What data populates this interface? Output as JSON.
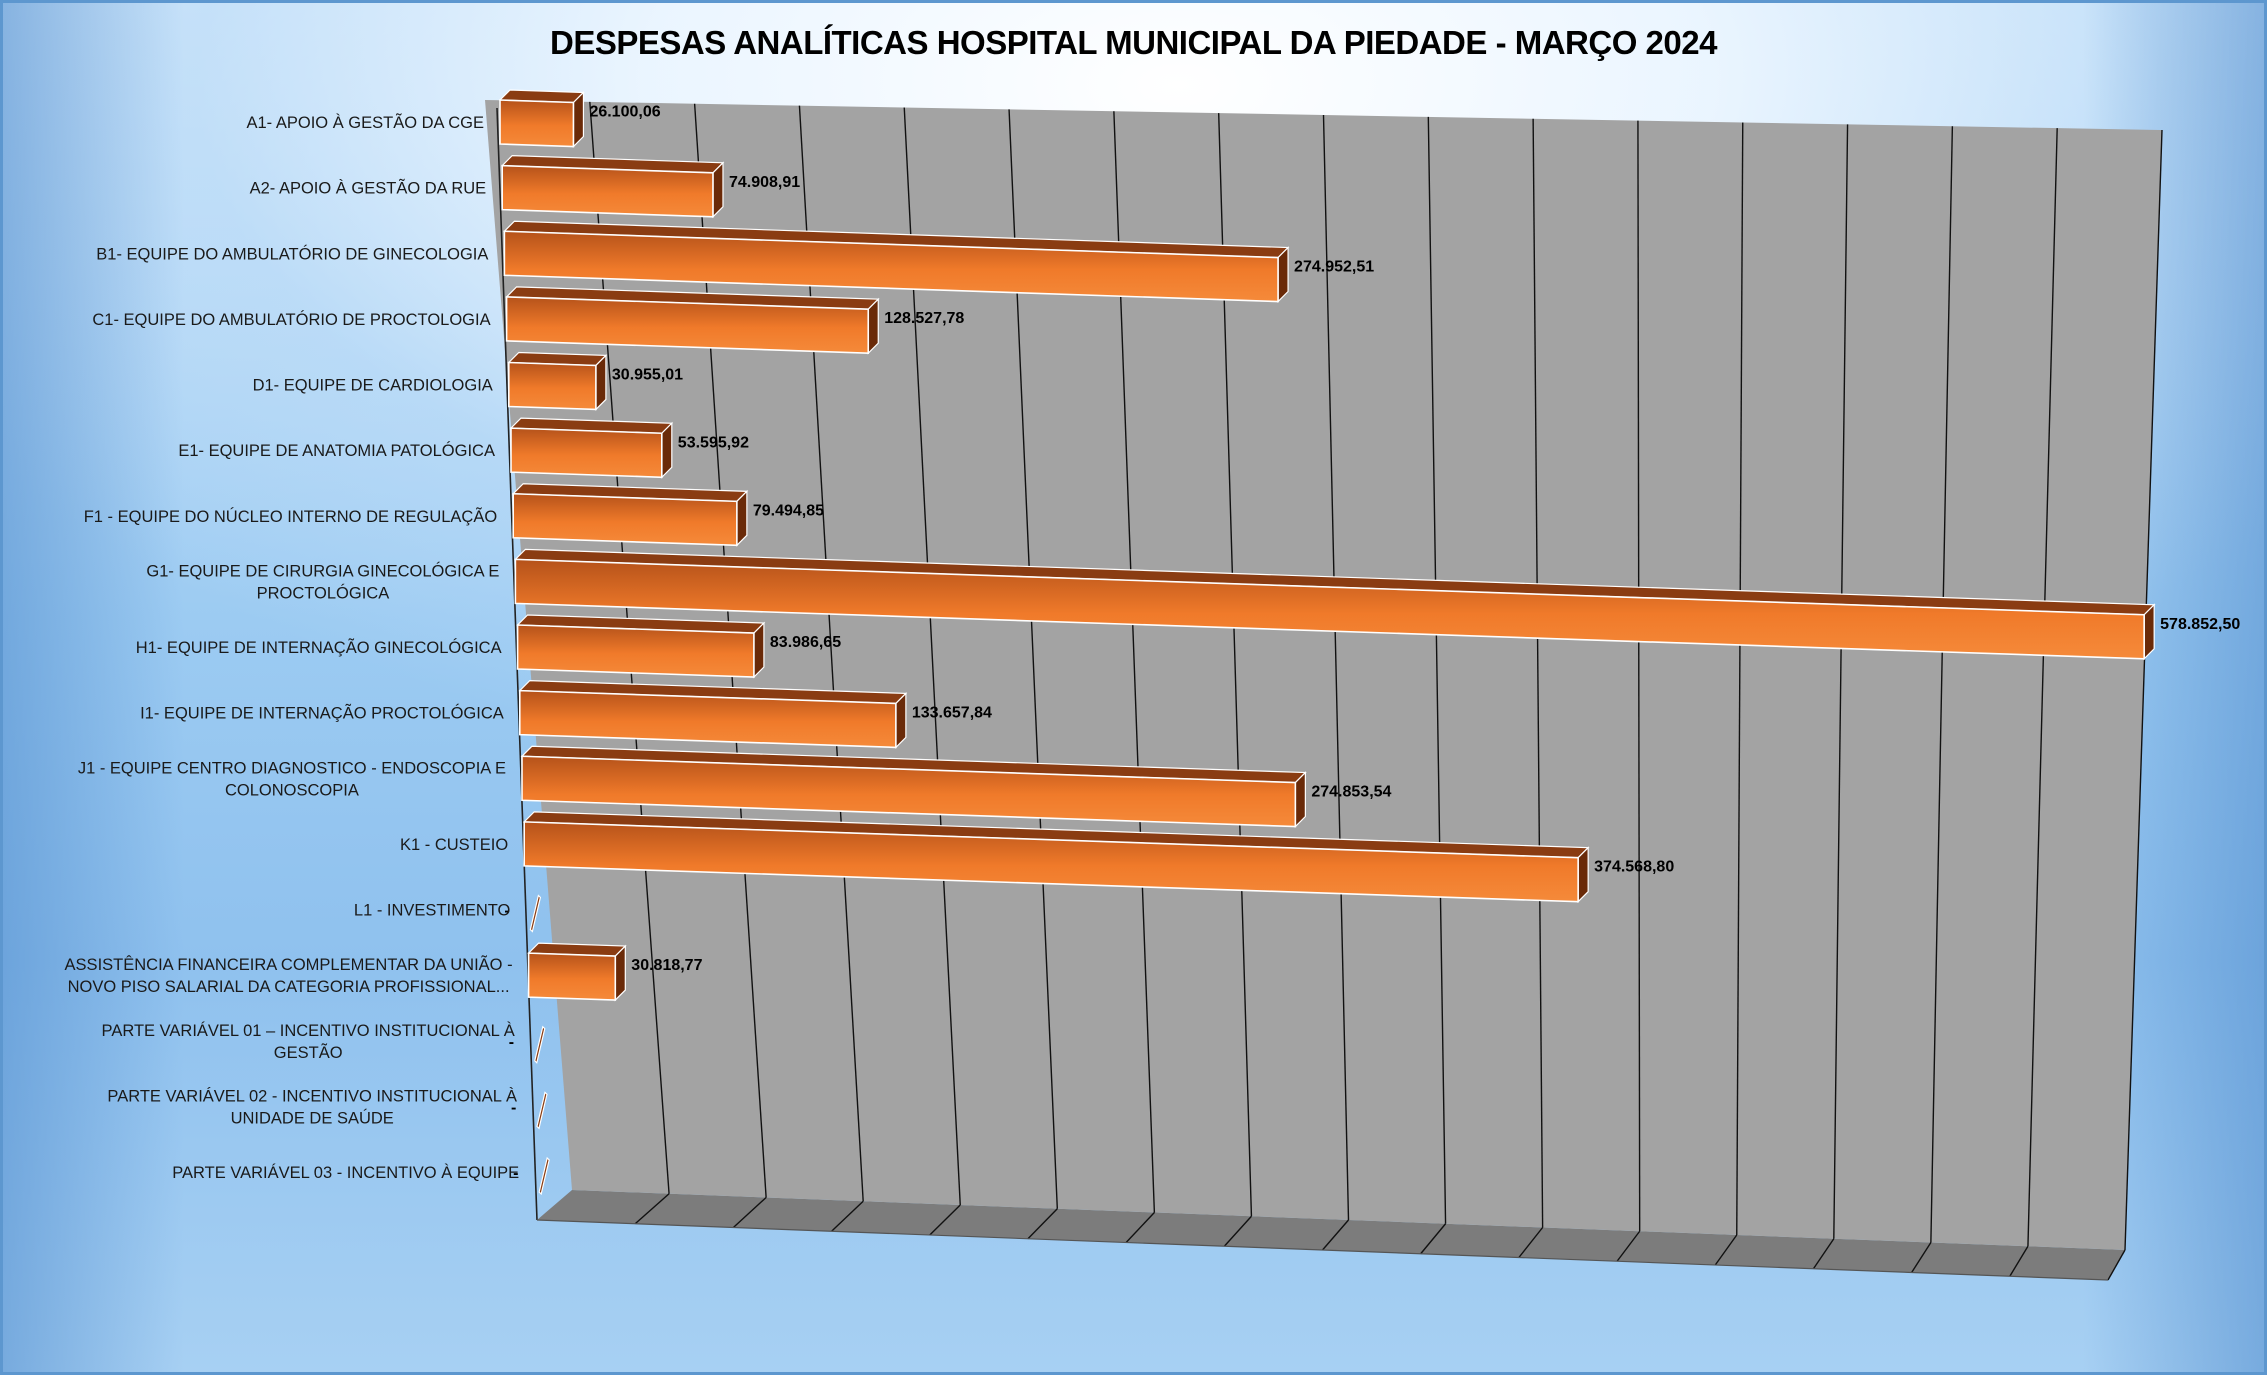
{
  "chart_data": {
    "type": "bar",
    "orientation": "horizontal",
    "title": "DESPESAS ANALÍTICAS HOSPITAL MUNICIPAL DA PIEDADE - MARÇO 2024",
    "categories": [
      [
        "A1- APOIO À GESTÃO DA CGE"
      ],
      [
        "A2- APOIO À GESTÃO DA RUE"
      ],
      [
        "B1- EQUIPE DO AMBULATÓRIO DE GINECOLOGIA"
      ],
      [
        "C1- EQUIPE DO AMBULATÓRIO DE PROCTOLOGIA"
      ],
      [
        "D1- EQUIPE DE CARDIOLOGIA"
      ],
      [
        "E1- EQUIPE DE ANATOMIA PATOLÓGICA"
      ],
      [
        "F1 - EQUIPE DO NÚCLEO INTERNO DE REGULAÇÃO"
      ],
      [
        "G1- EQUIPE DE CIRURGIA GINECOLÓGICA E",
        "PROCTOLÓGICA"
      ],
      [
        "H1- EQUIPE DE INTERNAÇÃO GINECOLÓGICA"
      ],
      [
        "I1- EQUIPE DE INTERNAÇÃO PROCTOLÓGICA"
      ],
      [
        "J1 - EQUIPE CENTRO DIAGNOSTICO - ENDOSCOPIA E",
        "COLONOSCOPIA"
      ],
      [
        "K1 - CUSTEIO"
      ],
      [
        "L1 - INVESTIMENTO"
      ],
      [
        "ASSISTÊNCIA FINANCEIRA COMPLEMENTAR DA UNIÃO -",
        "NOVO PISO SALARIAL DA CATEGORIA PROFISSIONAL..."
      ],
      [
        "PARTE VARIÁVEL 01 – INCENTIVO INSTITUCIONAL À",
        "GESTÃO"
      ],
      [
        "PARTE VARIÁVEL 02 - INCENTIVO INSTITUCIONAL À",
        "UNIDADE DE SAÚDE"
      ],
      [
        "PARTE VARIÁVEL 03 - INCENTIVO À EQUIPE"
      ]
    ],
    "values": [
      26100.06,
      74908.91,
      274952.51,
      128527.78,
      30955.01,
      53595.92,
      79494.85,
      578852.5,
      83986.65,
      133657.84,
      274853.54,
      374568.8,
      0,
      30818.77,
      0,
      0,
      0
    ],
    "value_labels": [
      "26.100,06",
      "74.908,91",
      "274.952,51",
      "128.527,78",
      "30.955,01",
      "53.595,92",
      "79.494,85",
      "578.852,50",
      "83.986,65",
      "133.657,84",
      "274.853,54",
      "374.568,80",
      "-",
      "30.818,77",
      "-",
      "-",
      "-"
    ],
    "xlim": [
      0,
      580000
    ],
    "gridlines": 16,
    "grid": true,
    "style": "3d",
    "colors": {
      "bar_front": "#f07a2a",
      "bar_front_dark": "#b5521a",
      "bar_top": "#8a3c12",
      "bar_side": "#6a2a08",
      "wall": "#a3a3a3",
      "floor": "#7c7c7c",
      "gridline": "#111111"
    }
  }
}
